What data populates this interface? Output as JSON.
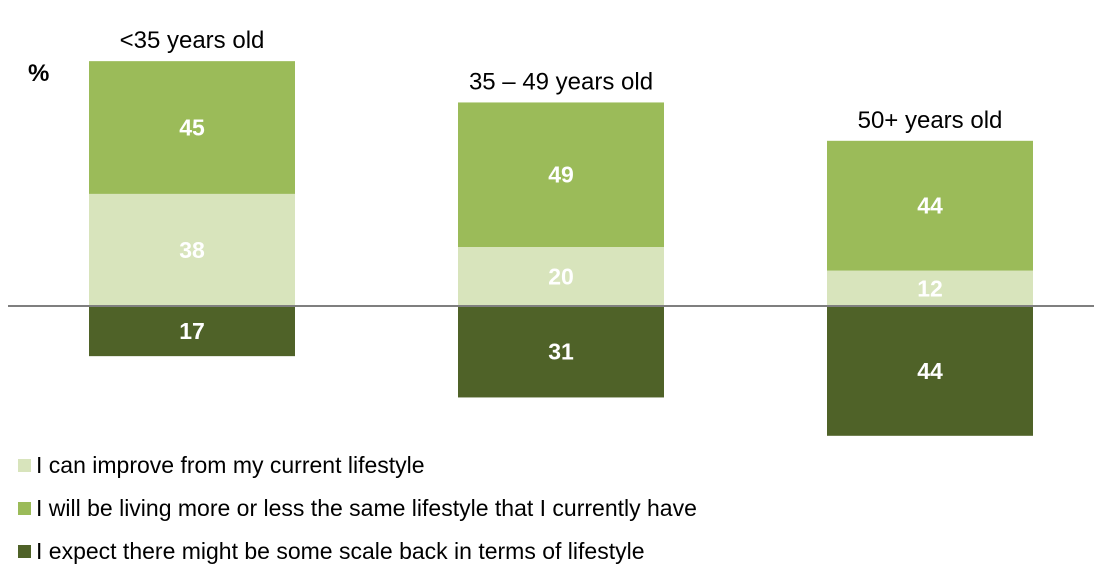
{
  "unit_label": "%",
  "colors": {
    "improve": "#d8e4bc",
    "same": "#9bbb59",
    "scale_back": "#4f6228",
    "baseline": "#7f7f7f"
  },
  "chart_data": {
    "type": "bar",
    "subtype": "diverging-stacked",
    "categories": [
      "<35 years old",
      "35 – 49 years old",
      "50+ years old"
    ],
    "series": [
      {
        "name": "I can improve from my current lifestyle",
        "values": [
          38,
          20,
          12
        ],
        "direction": "up"
      },
      {
        "name": "I will be living more or less the same lifestyle that I currently have",
        "values": [
          45,
          49,
          44
        ],
        "direction": "up"
      },
      {
        "name": "I expect there might be some scale back in terms of lifestyle",
        "values": [
          17,
          31,
          44
        ],
        "direction": "down"
      }
    ],
    "ylabel": "%",
    "legend_position": "bottom-left",
    "grid": false
  }
}
